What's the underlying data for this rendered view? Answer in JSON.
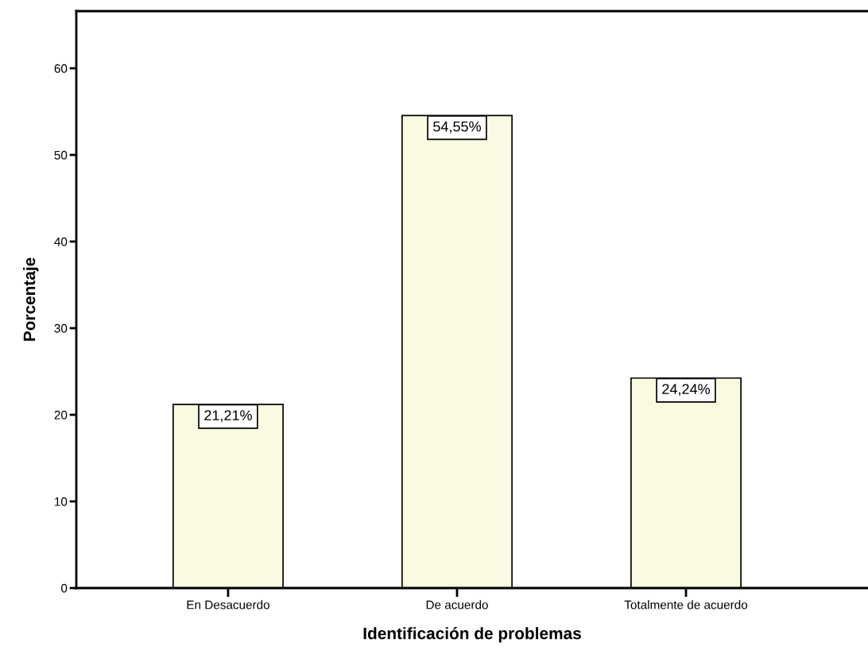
{
  "chart_data": {
    "type": "bar",
    "categories": [
      "En Desacuerdo",
      "De acuerdo",
      "Totalmente de acuerdo"
    ],
    "values": [
      21.21,
      54.55,
      24.24
    ],
    "value_labels": [
      "21,21%",
      "54,55%",
      "24,24%"
    ],
    "color": "#fafae2",
    "xlabel": "Identificación de problemas",
    "ylabel": "Porcentaje",
    "ylim": [
      0,
      66.6
    ],
    "yticks": [
      0,
      10,
      20,
      30,
      40,
      50,
      60
    ],
    "grid": false,
    "legend": false
  }
}
